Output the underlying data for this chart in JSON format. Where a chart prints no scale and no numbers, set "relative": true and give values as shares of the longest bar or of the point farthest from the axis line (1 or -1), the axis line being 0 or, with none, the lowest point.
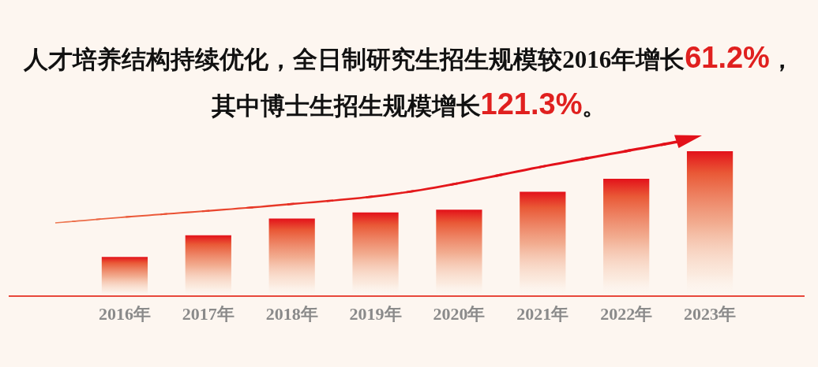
{
  "chart_data": {
    "type": "bar",
    "title": "人才培养结构持续优化，全日制研究生招生规模较2016年增长61.2%，其中博士生招生规模增长121.3%。",
    "categories": [
      "2016年",
      "2017年",
      "2018年",
      "2019年",
      "2020年",
      "2021年",
      "2022年",
      "2023年"
    ],
    "values": [
      0.27,
      0.42,
      0.535,
      0.577,
      0.596,
      0.72,
      0.81,
      1
    ],
    "color": "#e3111a",
    "relative": true
  }
}
